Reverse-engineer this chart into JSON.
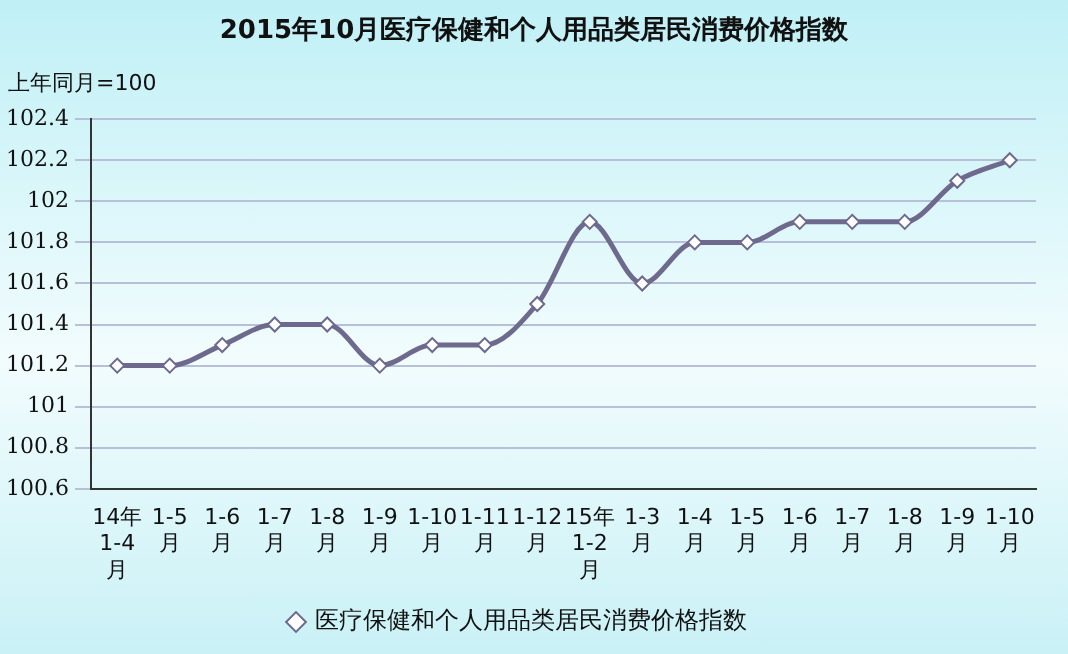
{
  "chart_data": {
    "type": "line",
    "title": "2015年10月医疗保健和个人用品类居民消费价格指数",
    "ylabel": "上年同月=100",
    "categories": [
      "14年1-4月",
      "1-5月",
      "1-6月",
      "1-7月",
      "1-8月",
      "1-9月",
      "1-10月",
      "1-11月",
      "1-12月",
      "15年1-2月",
      "1-3月",
      "1-4月",
      "1-5月",
      "1-6月",
      "1-7月",
      "1-8月",
      "1-9月",
      "1-10月"
    ],
    "series": [
      {
        "name": "医疗保健和个人用品类居民消费价格指数",
        "color": "#6e6a8e",
        "values": [
          101.2,
          101.2,
          101.3,
          101.4,
          101.4,
          101.2,
          101.3,
          101.3,
          101.5,
          101.9,
          101.6,
          101.8,
          101.8,
          101.9,
          101.9,
          101.9,
          102.1,
          102.2
        ]
      }
    ],
    "ylim": [
      100.6,
      102.4
    ],
    "yticks": [
      100.6,
      100.8,
      101,
      101.2,
      101.4,
      101.6,
      101.8,
      102,
      102.2,
      102.4
    ],
    "grid": "y",
    "legend": "bottom",
    "marker": "diamond",
    "line_style": "solid"
  }
}
